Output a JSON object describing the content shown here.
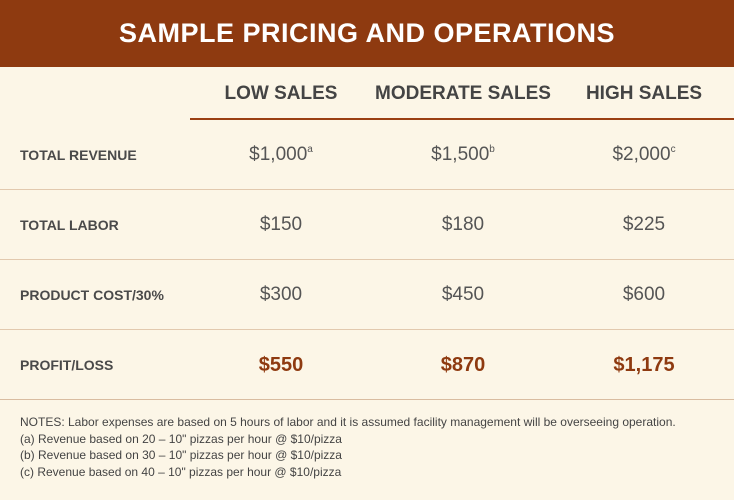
{
  "title": "SAMPLE PRICING AND OPERATIONS",
  "columns": [
    "LOW SALES",
    "MODERATE SALES",
    "HIGH SALES"
  ],
  "rows": [
    {
      "label": "TOTAL REVENUE",
      "cells": [
        {
          "value": "$1,000",
          "sup": "a"
        },
        {
          "value": "$1,500",
          "sup": "b"
        },
        {
          "value": "$2,000",
          "sup": "c"
        }
      ]
    },
    {
      "label": "TOTAL LABOR",
      "cells": [
        {
          "value": "$150",
          "sup": ""
        },
        {
          "value": "$180",
          "sup": ""
        },
        {
          "value": "$225",
          "sup": ""
        }
      ]
    },
    {
      "label": "PRODUCT COST/30%",
      "cells": [
        {
          "value": "$300",
          "sup": ""
        },
        {
          "value": "$450",
          "sup": ""
        },
        {
          "value": "$600",
          "sup": ""
        }
      ]
    },
    {
      "label": "PROFIT/LOSS",
      "cells": [
        {
          "value": "$550",
          "sup": ""
        },
        {
          "value": "$870",
          "sup": ""
        },
        {
          "value": "$1,175",
          "sup": ""
        }
      ]
    }
  ],
  "notes": [
    "NOTES: Labor expenses are based on 5 hours of labor and it is assumed facility management will be overseeing operation.",
    "(a) Revenue based on 20 – 10\" pizzas per hour @ $10/pizza",
    "(b) Revenue based on 30 – 10\" pizzas per hour @ $10/pizza",
    "(c) Revenue based on 40 – 10\" pizzas per hour @ $10/pizza"
  ],
  "colors": {
    "header_bg": "#8e3a10",
    "page_bg": "#fcf6e7",
    "profit_text": "#8e3a10",
    "rule": "#9a3f13"
  }
}
